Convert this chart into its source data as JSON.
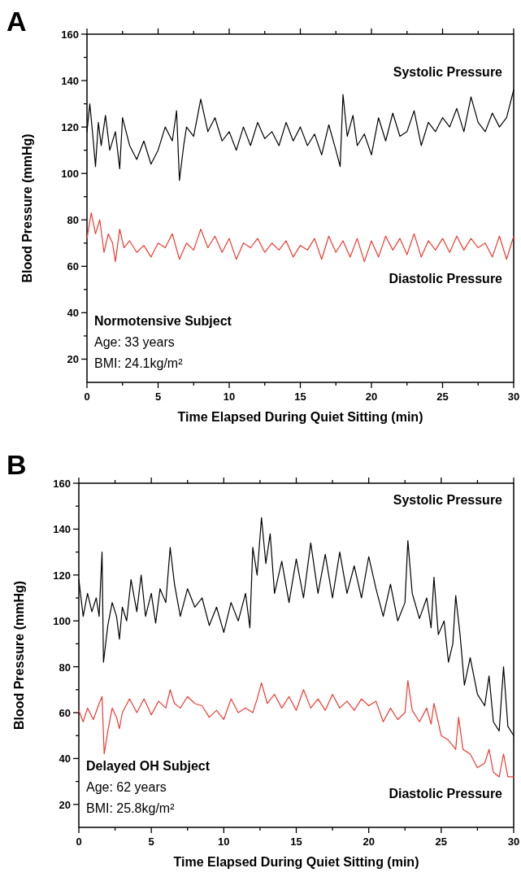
{
  "chart_data": [
    {
      "type": "line",
      "title": "A",
      "xlabel": "Time Elapsed During Quiet Sitting (min)",
      "ylabel": "Blood Pressure (mmHg)",
      "xlim": [
        0,
        30
      ],
      "ylim": [
        10,
        160
      ],
      "xticks": [
        0,
        {
          "value": 2.5,
          "label": null
        },
        5,
        {
          "value": 7.5,
          "label": null
        },
        10,
        {
          "value": 12.5,
          "label": null
        },
        15,
        {
          "value": 17.5,
          "label": null
        },
        20,
        {
          "value": 22.5,
          "label": null
        },
        25,
        {
          "value": 27.5,
          "label": null
        },
        30
      ],
      "yticks": [
        20,
        {
          "value": 30,
          "label": null
        },
        40,
        {
          "value": 50,
          "label": null
        },
        60,
        {
          "value": 70,
          "label": null
        },
        80,
        {
          "value": 90,
          "label": null
        },
        100,
        {
          "value": 110,
          "label": null
        },
        120,
        {
          "value": 130,
          "label": null
        },
        140,
        {
          "value": 150,
          "label": null
        },
        160
      ],
      "annotations": [
        "Normotensive Subject",
        "Age: 33 years",
        "BMI: 24.1kg/m²"
      ],
      "series": [
        {
          "name": "Systolic Pressure",
          "color": "#000000",
          "x": [
            0,
            0.2,
            0.4,
            0.6,
            0.8,
            1,
            1.3,
            1.6,
            2,
            2.3,
            2.5,
            3,
            3.5,
            4,
            4.5,
            5,
            5.5,
            6,
            6.3,
            6.5,
            6.8,
            7,
            7.5,
            8,
            8.5,
            9,
            9.5,
            10,
            10.5,
            11,
            11.5,
            12,
            12.5,
            13,
            13.5,
            14,
            14.5,
            15,
            15.5,
            16,
            16.5,
            17,
            17.5,
            17.8,
            18,
            18.3,
            18.7,
            19,
            19.5,
            20,
            20.5,
            21,
            21.5,
            22,
            22.5,
            23,
            23.5,
            24,
            24.5,
            25,
            25.5,
            26,
            26.5,
            27,
            27.5,
            28,
            28.5,
            29,
            29.5,
            30
          ],
          "values": [
            118,
            130,
            117,
            103,
            122,
            112,
            125,
            110,
            118,
            102,
            124,
            112,
            106,
            114,
            104,
            110,
            120,
            114,
            127,
            97,
            112,
            120,
            116,
            132,
            118,
            124,
            114,
            118,
            110,
            120,
            112,
            122,
            115,
            118,
            112,
            122,
            114,
            120,
            112,
            117,
            108,
            121,
            110,
            103,
            134,
            116,
            125,
            112,
            117,
            108,
            124,
            114,
            126,
            116,
            118,
            127,
            112,
            122,
            118,
            124,
            120,
            128,
            118,
            133,
            122,
            118,
            126,
            120,
            124,
            136
          ]
        },
        {
          "name": "Diastolic Pressure",
          "color": "#ee3a32",
          "x": [
            0,
            0.3,
            0.6,
            0.9,
            1.2,
            1.5,
            1.8,
            2,
            2.3,
            2.6,
            3,
            3.5,
            4,
            4.5,
            5,
            5.5,
            6,
            6.5,
            7,
            7.5,
            8,
            8.5,
            9,
            9.5,
            10,
            10.5,
            11,
            11.5,
            12,
            12.5,
            13,
            13.5,
            14,
            14.5,
            15,
            15.5,
            16,
            16.5,
            17,
            17.5,
            18,
            18.5,
            19,
            19.5,
            20,
            20.5,
            21,
            21.5,
            22,
            22.5,
            23,
            23.5,
            24,
            24.5,
            25,
            25.5,
            26,
            26.5,
            27,
            27.5,
            28,
            28.5,
            29,
            29.5,
            30
          ],
          "values": [
            72,
            83,
            74,
            80,
            66,
            74,
            70,
            62,
            76,
            68,
            71,
            66,
            69,
            64,
            70,
            68,
            74,
            63,
            70,
            67,
            76,
            68,
            73,
            66,
            72,
            63,
            70,
            68,
            72,
            66,
            70,
            67,
            71,
            64,
            69,
            67,
            72,
            63,
            73,
            66,
            71,
            64,
            72,
            62,
            71,
            64,
            73,
            67,
            72,
            65,
            74,
            64,
            71,
            67,
            72,
            66,
            73,
            67,
            72,
            68,
            70,
            64,
            73,
            63,
            73
          ]
        }
      ]
    },
    {
      "type": "line",
      "title": "B",
      "xlabel": "Time Elapsed During Quiet Sitting (min)",
      "ylabel": "Blood Pressure (mmHg)",
      "xlim": [
        0,
        30
      ],
      "ylim": [
        10,
        160
      ],
      "xticks": [
        0,
        {
          "value": 2.5,
          "label": null
        },
        5,
        {
          "value": 7.5,
          "label": null
        },
        10,
        {
          "value": 12.5,
          "label": null
        },
        15,
        {
          "value": 17.5,
          "label": null
        },
        20,
        {
          "value": 22.5,
          "label": null
        },
        25,
        {
          "value": 27.5,
          "label": null
        },
        30
      ],
      "yticks": [
        20,
        {
          "value": 30,
          "label": null
        },
        40,
        {
          "value": 50,
          "label": null
        },
        60,
        {
          "value": 70,
          "label": null
        },
        80,
        {
          "value": 90,
          "label": null
        },
        100,
        {
          "value": 110,
          "label": null
        },
        120,
        {
          "value": 130,
          "label": null
        },
        140,
        {
          "value": 150,
          "label": null
        },
        160
      ],
      "annotations": [
        "Delayed OH Subject",
        "Age: 62 years",
        "BMI: 25.8kg/m²"
      ],
      "series": [
        {
          "name": "Systolic Pressure",
          "color": "#000000",
          "x": [
            0,
            0.3,
            0.6,
            0.9,
            1.2,
            1.4,
            1.6,
            1.7,
            2,
            2.3,
            2.6,
            2.8,
            3,
            3.3,
            3.6,
            4,
            4.3,
            4.6,
            5,
            5.3,
            5.6,
            6,
            6.3,
            6.6,
            7,
            7.5,
            8,
            8.5,
            9,
            9.5,
            10,
            10.5,
            11,
            11.5,
            11.8,
            12,
            12.3,
            12.6,
            12.9,
            13.2,
            13.5,
            14,
            14.5,
            15,
            15.5,
            16,
            16.5,
            17,
            17.5,
            18,
            18.5,
            19,
            19.5,
            20,
            20.5,
            21,
            21.5,
            22,
            22.5,
            22.7,
            23,
            23.5,
            24,
            24.3,
            24.5,
            24.8,
            25.2,
            25.5,
            25.8,
            26,
            26.3,
            26.6,
            27,
            27.5,
            28,
            28.3,
            28.6,
            29,
            29.3,
            29.6,
            30
          ],
          "values": [
            118,
            102,
            112,
            104,
            110,
            102,
            130,
            82,
            98,
            108,
            102,
            92,
            106,
            100,
            118,
            104,
            120,
            102,
            112,
            99,
            114,
            108,
            132,
            116,
            102,
            114,
            106,
            110,
            98,
            106,
            95,
            108,
            100,
            112,
            97,
            132,
            120,
            145,
            125,
            138,
            112,
            126,
            108,
            127,
            110,
            134,
            112,
            129,
            110,
            130,
            112,
            124,
            110,
            128,
            114,
            102,
            116,
            100,
            108,
            135,
            112,
            101,
            110,
            97,
            119,
            94,
            100,
            82,
            90,
            111,
            94,
            72,
            84,
            68,
            63,
            76,
            56,
            52,
            80,
            54,
            50
          ]
        },
        {
          "name": "Diastolic Pressure",
          "color": "#ee3a32",
          "x": [
            0,
            0.3,
            0.6,
            1,
            1.4,
            1.6,
            1.75,
            2,
            2.3,
            2.6,
            2.8,
            3,
            3.5,
            4,
            4.5,
            5,
            5.5,
            6,
            6.3,
            6.6,
            7,
            7.5,
            8,
            8.5,
            9,
            9.5,
            10,
            10.5,
            11,
            11.5,
            12,
            12.3,
            12.6,
            13,
            13.5,
            14,
            14.5,
            15,
            15.5,
            16,
            16.5,
            17,
            17.5,
            18,
            18.5,
            19,
            19.5,
            20,
            20.5,
            21,
            21.5,
            22,
            22.5,
            22.7,
            23,
            23.5,
            24,
            24.3,
            24.5,
            25,
            25.5,
            26,
            26.2,
            26.5,
            27,
            27.5,
            28,
            28.3,
            28.6,
            29,
            29.3,
            29.6,
            30
          ],
          "values": [
            61,
            56,
            62,
            57,
            64,
            67,
            42,
            52,
            62,
            58,
            53,
            60,
            66,
            60,
            66,
            59,
            65,
            62,
            70,
            64,
            62,
            67,
            64,
            63,
            58,
            61,
            57,
            66,
            60,
            62,
            60,
            66,
            73,
            64,
            68,
            62,
            67,
            61,
            70,
            62,
            66,
            61,
            68,
            62,
            65,
            61,
            66,
            63,
            65,
            56,
            62,
            57,
            60,
            74,
            61,
            56,
            62,
            55,
            64,
            50,
            48,
            44,
            58,
            44,
            42,
            36,
            38,
            44,
            34,
            32,
            42,
            32,
            32
          ]
        }
      ]
    }
  ]
}
